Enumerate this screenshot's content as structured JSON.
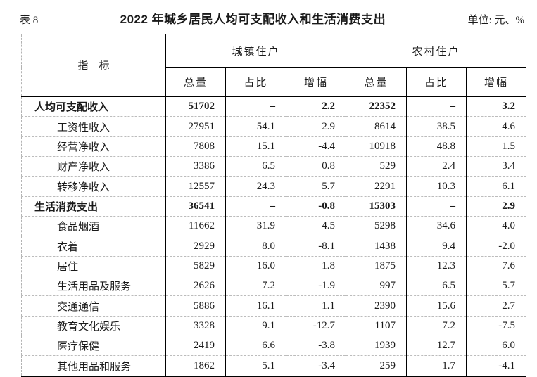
{
  "page": {
    "table_label": "表 8",
    "title": "2022 年城乡居民人均可支配收入和生活消费支出",
    "unit_label": "单位: 元、%"
  },
  "table": {
    "indicator_header": "指　标",
    "groups": [
      {
        "label": "城镇住户",
        "columns": [
          "总量",
          "占比",
          "增幅"
        ]
      },
      {
        "label": "农村住户",
        "columns": [
          "总量",
          "占比",
          "增幅"
        ]
      }
    ],
    "rows": [
      {
        "label": "人均可支配收入",
        "bold": true,
        "values": [
          "51702",
          "–",
          "2.2",
          "22352",
          "–",
          "3.2"
        ]
      },
      {
        "label": "工资性收入",
        "bold": false,
        "values": [
          "27951",
          "54.1",
          "2.9",
          "8614",
          "38.5",
          "4.6"
        ]
      },
      {
        "label": "经营净收入",
        "bold": false,
        "values": [
          "7808",
          "15.1",
          "-4.4",
          "10918",
          "48.8",
          "1.5"
        ]
      },
      {
        "label": "财产净收入",
        "bold": false,
        "values": [
          "3386",
          "6.5",
          "0.8",
          "529",
          "2.4",
          "3.4"
        ]
      },
      {
        "label": "转移净收入",
        "bold": false,
        "values": [
          "12557",
          "24.3",
          "5.7",
          "2291",
          "10.3",
          "6.1"
        ]
      },
      {
        "label": "生活消费支出",
        "bold": true,
        "values": [
          "36541",
          "–",
          "-0.8",
          "15303",
          "–",
          "2.9"
        ]
      },
      {
        "label": "食品烟酒",
        "bold": false,
        "values": [
          "11662",
          "31.9",
          "4.5",
          "5298",
          "34.6",
          "4.0"
        ]
      },
      {
        "label": "衣着",
        "bold": false,
        "values": [
          "2929",
          "8.0",
          "-8.1",
          "1438",
          "9.4",
          "-2.0"
        ]
      },
      {
        "label": "居住",
        "bold": false,
        "values": [
          "5829",
          "16.0",
          "1.8",
          "1875",
          "12.3",
          "7.6"
        ]
      },
      {
        "label": "生活用品及服务",
        "bold": false,
        "values": [
          "2626",
          "7.2",
          "-1.9",
          "997",
          "6.5",
          "5.7"
        ]
      },
      {
        "label": "交通通信",
        "bold": false,
        "values": [
          "5886",
          "16.1",
          "1.1",
          "2390",
          "15.6",
          "2.7"
        ]
      },
      {
        "label": "教育文化娱乐",
        "bold": false,
        "values": [
          "3328",
          "9.1",
          "-12.7",
          "1107",
          "7.2",
          "-7.5"
        ]
      },
      {
        "label": "医疗保健",
        "bold": false,
        "values": [
          "2419",
          "6.6",
          "-3.8",
          "1939",
          "12.7",
          "6.0"
        ]
      },
      {
        "label": "其他用品和服务",
        "bold": false,
        "values": [
          "1862",
          "5.1",
          "-3.4",
          "259",
          "1.7",
          "-4.1"
        ]
      }
    ]
  }
}
